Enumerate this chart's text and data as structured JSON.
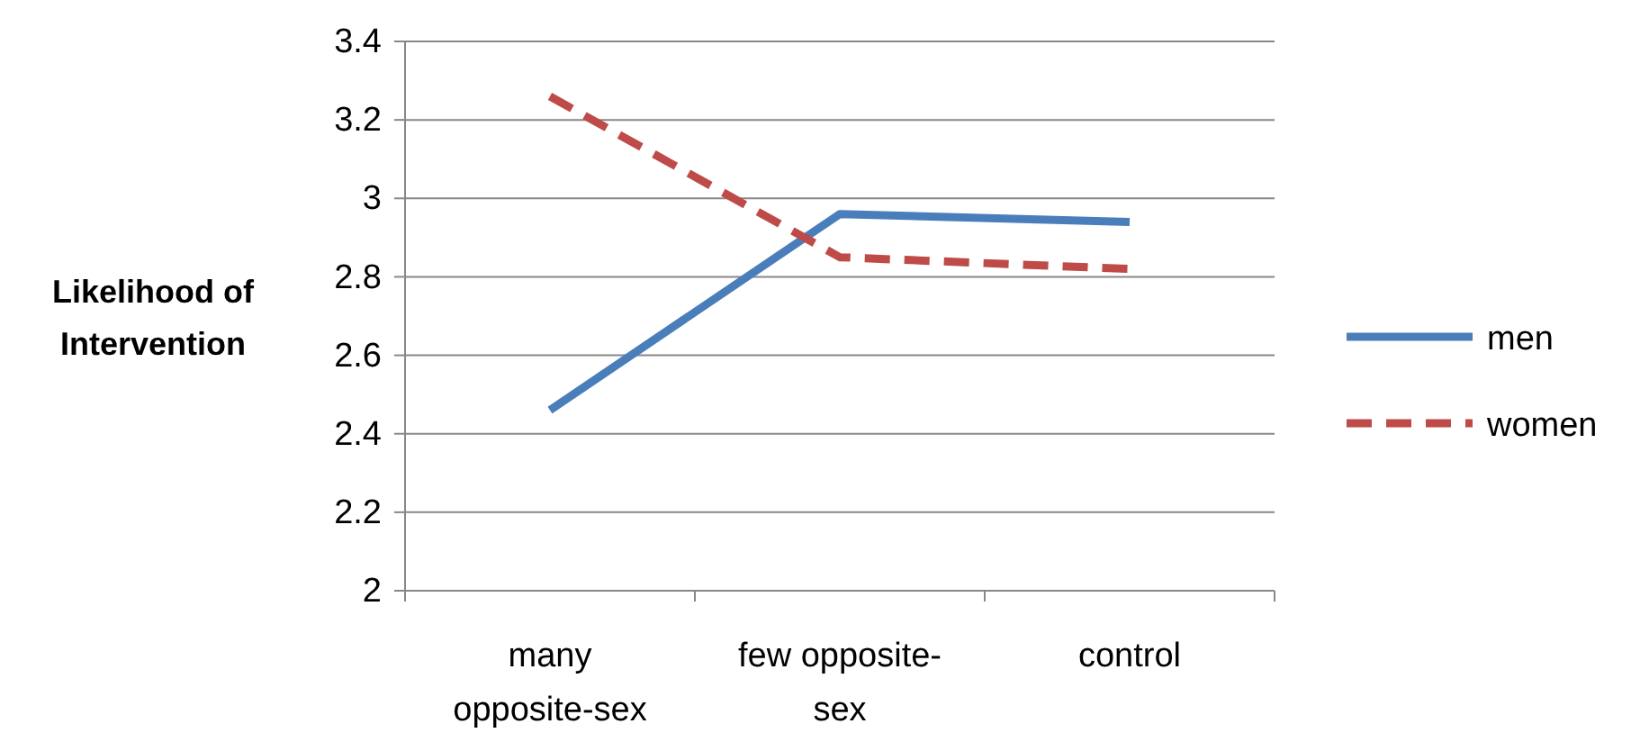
{
  "chart_data": {
    "type": "line",
    "ylabel": "Likelihood of Intervention",
    "categories": [
      "many opposite-sex",
      "few opposite-sex",
      "control"
    ],
    "series": [
      {
        "name": "men",
        "color": "#4a7ebb",
        "values": [
          2.46,
          2.96,
          2.94
        ],
        "line_style": "solid"
      },
      {
        "name": "women",
        "color": "#be4b48",
        "values": [
          3.26,
          2.85,
          2.82
        ],
        "line_style": "dashed"
      }
    ],
    "ylim": [
      2,
      3.4
    ],
    "yticks": [
      2,
      2.2,
      2.4,
      2.6,
      2.8,
      3,
      3.2,
      3.4
    ],
    "grid": "y",
    "legend": "right",
    "marker": "none"
  }
}
